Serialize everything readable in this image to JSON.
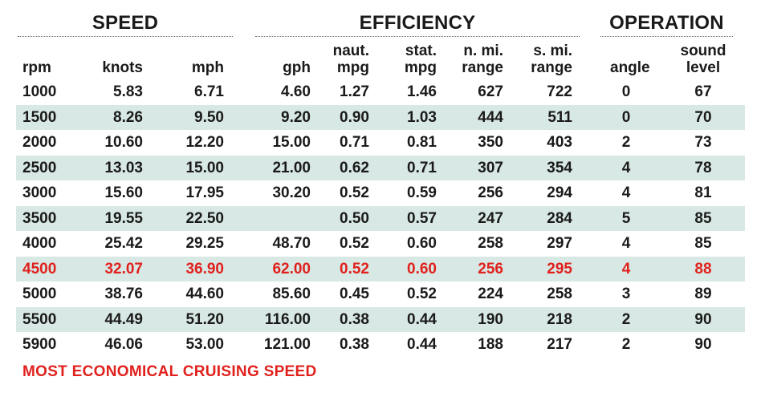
{
  "groups": {
    "speed": "SPEED",
    "efficiency": "EFFICIENCY",
    "operation": "OPERATION"
  },
  "headers": {
    "rpm": [
      "rpm"
    ],
    "knots": [
      "knots"
    ],
    "mph": [
      "mph"
    ],
    "gph": [
      "gph"
    ],
    "naut_mpg": [
      "naut.",
      "mpg"
    ],
    "stat_mpg": [
      "stat.",
      "mpg"
    ],
    "n_range": [
      "n. mi.",
      "range"
    ],
    "s_range": [
      "s. mi.",
      "range"
    ],
    "angle": [
      "angle"
    ],
    "sound": [
      "sound",
      "level"
    ]
  },
  "rows": [
    {
      "rpm": "1000",
      "knots": "5.83",
      "mph": "6.71",
      "gph": "4.60",
      "naut_mpg": "1.27",
      "stat_mpg": "1.46",
      "n_range": "627",
      "s_range": "722",
      "angle": "0",
      "sound": "67"
    },
    {
      "rpm": "1500",
      "knots": "8.26",
      "mph": "9.50",
      "gph": "9.20",
      "naut_mpg": "0.90",
      "stat_mpg": "1.03",
      "n_range": "444",
      "s_range": "511",
      "angle": "0",
      "sound": "70"
    },
    {
      "rpm": "2000",
      "knots": "10.60",
      "mph": "12.20",
      "gph": "15.00",
      "naut_mpg": "0.71",
      "stat_mpg": "0.81",
      "n_range": "350",
      "s_range": "403",
      "angle": "2",
      "sound": "73"
    },
    {
      "rpm": "2500",
      "knots": "13.03",
      "mph": "15.00",
      "gph": "21.00",
      "naut_mpg": "0.62",
      "stat_mpg": "0.71",
      "n_range": "307",
      "s_range": "354",
      "angle": "4",
      "sound": "78"
    },
    {
      "rpm": "3000",
      "knots": "15.60",
      "mph": "17.95",
      "gph": "30.20",
      "naut_mpg": "0.52",
      "stat_mpg": "0.59",
      "n_range": "256",
      "s_range": "294",
      "angle": "4",
      "sound": "81"
    },
    {
      "rpm": "3500",
      "knots": "19.55",
      "mph": "22.50",
      "gph": "",
      "naut_mpg": "0.50",
      "stat_mpg": "0.57",
      "n_range": "247",
      "s_range": "284",
      "angle": "5",
      "sound": "85"
    },
    {
      "rpm": "4000",
      "knots": "25.42",
      "mph": "29.25",
      "gph": "48.70",
      "naut_mpg": "0.52",
      "stat_mpg": "0.60",
      "n_range": "258",
      "s_range": "297",
      "angle": "4",
      "sound": "85"
    },
    {
      "rpm": "4500",
      "knots": "32.07",
      "mph": "36.90",
      "gph": "62.00",
      "naut_mpg": "0.52",
      "stat_mpg": "0.60",
      "n_range": "256",
      "s_range": "295",
      "angle": "4",
      "sound": "88",
      "highlight": true
    },
    {
      "rpm": "5000",
      "knots": "38.76",
      "mph": "44.60",
      "gph": "85.60",
      "naut_mpg": "0.45",
      "stat_mpg": "0.52",
      "n_range": "224",
      "s_range": "258",
      "angle": "3",
      "sound": "89"
    },
    {
      "rpm": "5500",
      "knots": "44.49",
      "mph": "51.20",
      "gph": "116.00",
      "naut_mpg": "0.38",
      "stat_mpg": "0.44",
      "n_range": "190",
      "s_range": "218",
      "angle": "2",
      "sound": "90"
    },
    {
      "rpm": "5900",
      "knots": "46.06",
      "mph": "53.00",
      "gph": "121.00",
      "naut_mpg": "0.38",
      "stat_mpg": "0.44",
      "n_range": "188",
      "s_range": "217",
      "angle": "2",
      "sound": "90"
    }
  ],
  "footnote": "MOST ECONOMICAL CRUISING SPEED",
  "colors": {
    "shade": "#d8e8e4",
    "highlight": "#e0211d",
    "text": "#1a1a1a"
  }
}
